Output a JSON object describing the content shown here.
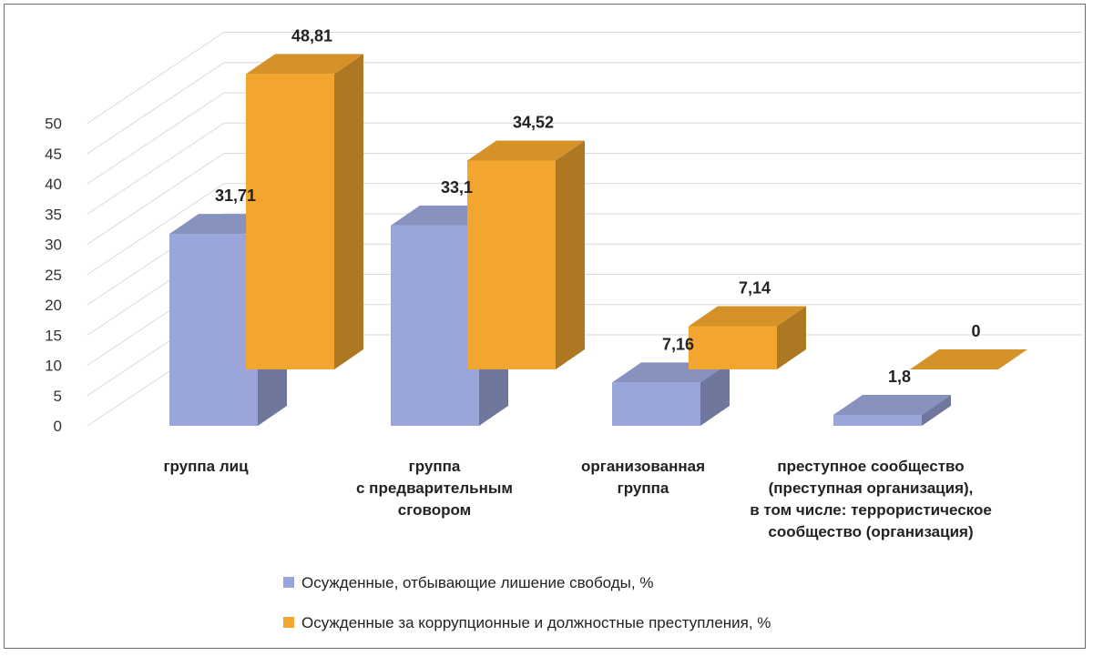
{
  "chart_data": {
    "type": "bar",
    "three_d": true,
    "ylim": [
      0,
      50
    ],
    "y_ticks": [
      0,
      5,
      10,
      15,
      20,
      25,
      30,
      35,
      40,
      45,
      50
    ],
    "grid": true,
    "legend_position": "bottom",
    "categories": [
      [
        "группа лиц"
      ],
      [
        "группа",
        "с предварительным",
        "сговором"
      ],
      [
        "организованная",
        "группа"
      ],
      [
        "преступное сообщество",
        "(преступная организация),",
        "в том числе: террористическое",
        "сообщество (организация)"
      ]
    ],
    "series": [
      {
        "name": "Осужденные, отбывающие лишение свободы, %",
        "values": [
          31.71,
          33.1,
          7.16,
          1.8
        ],
        "labels": [
          "31,71",
          "33,1",
          "7,16",
          "1,8"
        ],
        "color": "#9aa6d9"
      },
      {
        "name": "Осужденные за коррупционные и должностные преступления, %",
        "values": [
          48.81,
          34.52,
          7.14,
          0
        ],
        "labels": [
          "48,81",
          "34,52",
          "7,14",
          "0"
        ],
        "color": "#f2a62f"
      }
    ]
  }
}
